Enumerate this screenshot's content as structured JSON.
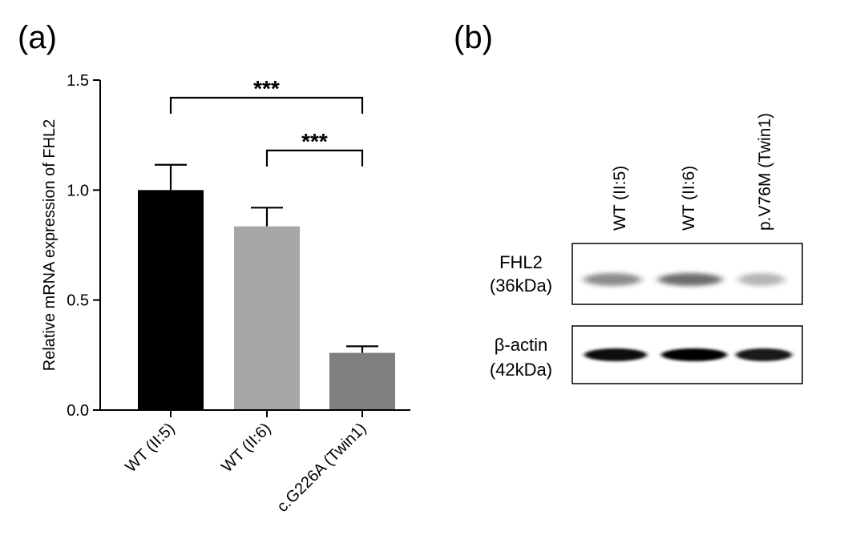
{
  "panels": {
    "a_label": "(a)",
    "b_label": "(b)"
  },
  "chart_data": {
    "type": "bar",
    "title": "",
    "xlabel": "",
    "ylabel": "Relative mRNA expression of FHL2",
    "ylim": [
      0,
      1.5
    ],
    "yticks": [
      0.0,
      0.5,
      1.0,
      1.5
    ],
    "ytick_labels": [
      "0.0",
      "0.5",
      "1.0",
      "1.5"
    ],
    "grid": false,
    "categories": [
      "WT (II:5)",
      "WT (II:6)",
      "c.G226A (Twin1)"
    ],
    "values": [
      1.0,
      0.835,
      0.26
    ],
    "errors": [
      0.115,
      0.085,
      0.03
    ],
    "colors": [
      "#000000",
      "#a7a7aa",
      "#7f7f7f"
    ],
    "significance": [
      {
        "from": 0,
        "to": 2,
        "label": "***",
        "level": 1.42
      },
      {
        "from": 1,
        "to": 2,
        "label": "***",
        "level": 1.18
      }
    ]
  },
  "blot": {
    "lanes": [
      "WT (II:5)",
      "WT (II:6)",
      "p.V76M (Twin1)"
    ],
    "rows": [
      {
        "name": "FHL2",
        "size": "(36kDa)",
        "intensities": [
          0.55,
          0.7,
          0.35
        ]
      },
      {
        "name": "β-actin",
        "size": "(42kDa)",
        "intensities": [
          0.95,
          1.0,
          0.9
        ]
      }
    ]
  }
}
